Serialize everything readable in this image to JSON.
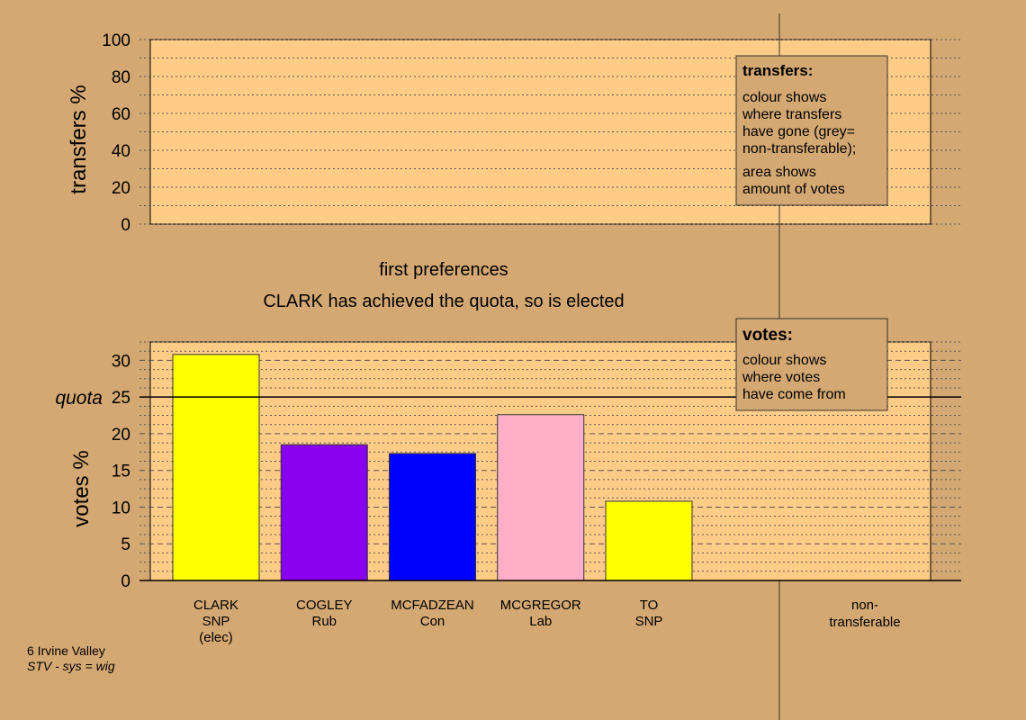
{
  "chart_data": [
    {
      "type": "bar",
      "panel": "transfers",
      "ylabel": "transfers %",
      "ylim": [
        0,
        100
      ],
      "yticks": [
        0,
        20,
        40,
        60,
        80,
        100
      ],
      "categories": [],
      "values": [],
      "legend": {
        "title": "transfers:",
        "lines1": [
          "colour shows",
          "where transfers",
          "have gone (grey=",
          "non-transferable);"
        ],
        "lines2": [
          "area shows",
          "amount of votes"
        ]
      }
    },
    {
      "type": "bar",
      "panel": "votes",
      "ylabel": "votes %",
      "ylim": [
        0,
        32.5
      ],
      "yticks": [
        0,
        5,
        10,
        15,
        20,
        25,
        30
      ],
      "quota": 25,
      "quota_label": "quota",
      "categories": [
        "CLARK",
        "COGLEY",
        "MCFADZEAN",
        "MCGREGOR",
        "TO"
      ],
      "category_sublabels": [
        [
          "SNP",
          "(elec)"
        ],
        [
          "Rub"
        ],
        [
          "Con"
        ],
        [
          "Lab"
        ],
        [
          "SNP"
        ]
      ],
      "values": [
        30.8,
        18.5,
        17.3,
        22.6,
        10.8
      ],
      "colors": [
        "#FFFF00",
        "#8800EE",
        "#0000FF",
        "#FFB0C8",
        "#FFFF00"
      ],
      "extra_category": [
        "non-",
        "transferable"
      ],
      "legend": {
        "title": "votes:",
        "lines": [
          "colour shows",
          "where votes",
          "have come from"
        ]
      }
    }
  ],
  "captions": {
    "stage": "first preferences",
    "status": "CLARK has achieved the quota, so is elected"
  },
  "footer": {
    "line1": "6 Irvine Valley",
    "line2": "STV - sys = wig"
  },
  "colors": {
    "background": "#D4A872",
    "plot_area": "#FFCC88"
  }
}
